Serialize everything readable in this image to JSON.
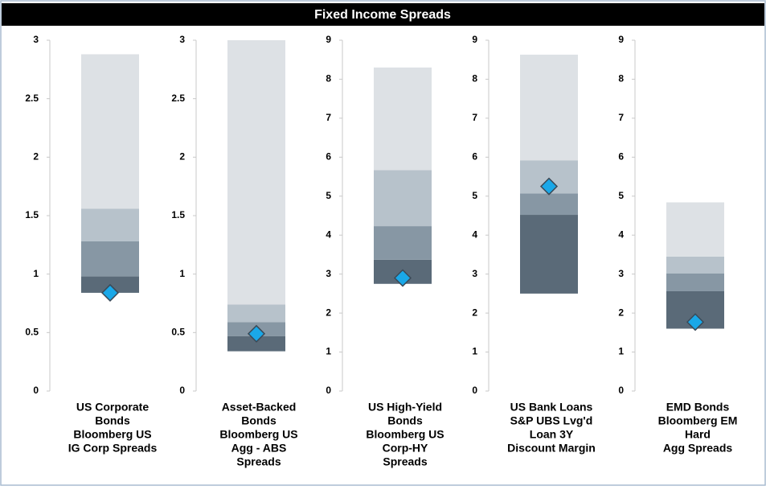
{
  "title": "Fixed Income Spreads",
  "chart_data": [
    {
      "type": "range_bar",
      "label": [
        "US Corporate",
        "Bonds",
        "Bloomberg US",
        "IG Corp Spreads"
      ],
      "levels": [
        0.84,
        0.98,
        1.28,
        1.56,
        2.88
      ],
      "colors": [
        "#5a6a78",
        "#8797a4",
        "#b7c2cb",
        "#dde1e5"
      ],
      "current": 0.84,
      "marker_color": "#1aa8e8",
      "ylim": [
        0,
        3
      ],
      "yticks": [
        0,
        0.5,
        1,
        1.5,
        2,
        2.5,
        3
      ]
    },
    {
      "type": "range_bar",
      "label": [
        "Asset-Backed",
        "Bonds",
        "Bloomberg US",
        "Agg - ABS",
        "Spreads"
      ],
      "levels": [
        0.34,
        0.47,
        0.59,
        0.74,
        3.0
      ],
      "colors": [
        "#5a6a78",
        "#8797a4",
        "#b7c2cb",
        "#dde1e5"
      ],
      "current": 0.49,
      "marker_color": "#1aa8e8",
      "ylim": [
        0,
        3
      ],
      "yticks": [
        0,
        0.5,
        1,
        1.5,
        2,
        2.5,
        3
      ]
    },
    {
      "type": "range_bar",
      "label": [
        "US High-Yield",
        "Bonds",
        "Bloomberg US",
        "Corp-HY",
        "Spreads"
      ],
      "levels": [
        2.75,
        3.37,
        4.23,
        5.67,
        8.3
      ],
      "colors": [
        "#5a6a78",
        "#8797a4",
        "#b7c2cb",
        "#dde1e5"
      ],
      "current": 2.9,
      "marker_color": "#1aa8e8",
      "ylim": [
        0,
        9
      ],
      "yticks": [
        0,
        1,
        2,
        3,
        4,
        5,
        6,
        7,
        8,
        9
      ]
    },
    {
      "type": "range_bar",
      "label": [
        "US Bank Loans",
        "S&P UBS  Lvg'd",
        "Loan 3Y",
        "Discount Margin"
      ],
      "levels": [
        2.5,
        4.52,
        5.07,
        5.92,
        8.63
      ],
      "colors": [
        "#5a6a78",
        "#8797a4",
        "#b7c2cb",
        "#dde1e5"
      ],
      "current": 5.25,
      "marker_color": "#1aa8e8",
      "ylim": [
        0,
        9
      ],
      "yticks": [
        0,
        1,
        2,
        3,
        4,
        5,
        6,
        7,
        8,
        9
      ]
    },
    {
      "type": "range_bar",
      "label": [
        "EMD Bonds",
        "Bloomberg EM",
        "Hard",
        "Agg Spreads"
      ],
      "levels": [
        1.6,
        2.56,
        3.02,
        3.45,
        4.84
      ],
      "colors": [
        "#5a6a78",
        "#8797a4",
        "#b7c2cb",
        "#dde1e5"
      ],
      "current": 1.77,
      "marker_color": "#1aa8e8",
      "ylim": [
        0,
        9
      ],
      "yticks": [
        0,
        1,
        2,
        3,
        4,
        5,
        6,
        7,
        8,
        9
      ]
    }
  ]
}
